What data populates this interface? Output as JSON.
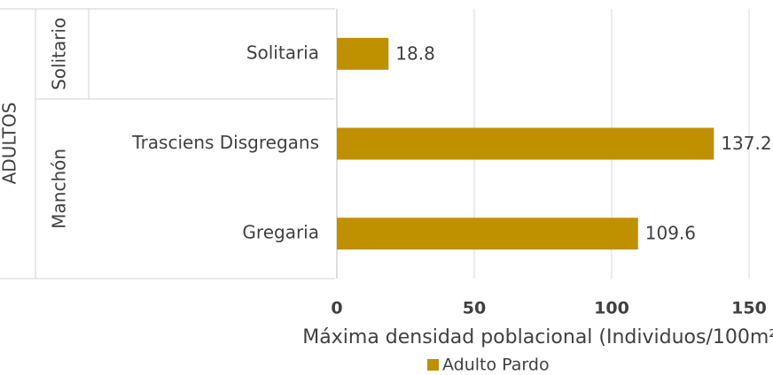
{
  "chart_data": {
    "type": "barh",
    "outer_group": "ADULTOS",
    "category_groups": [
      "Solitario",
      "Manchón",
      "Manchón"
    ],
    "categories": [
      "Solitaria",
      "Trasciens Disgregans",
      "Gregaria"
    ],
    "series": [
      {
        "name": "Adulto Pardo",
        "color": "#bf9000",
        "values": [
          18.8,
          137.2,
          109.6
        ]
      }
    ],
    "xlabel": "Máxima densidad poblacional (Individuos/100m²)",
    "xlim": [
      0,
      150
    ],
    "xticks": [
      0,
      50,
      100,
      150
    ],
    "grid": true,
    "legend": "bottom"
  }
}
